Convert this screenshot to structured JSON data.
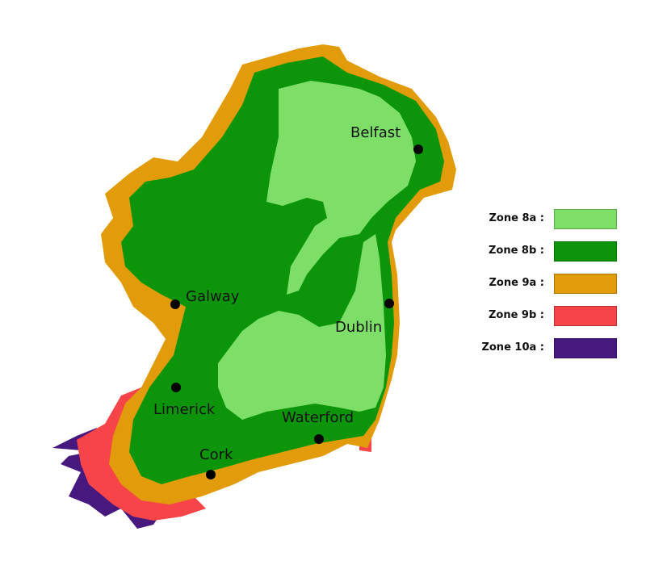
{
  "legend": [
    {
      "label": "Zone 8a :",
      "color": "#7ddf68"
    },
    {
      "label": "Zone 8b :",
      "color": "#0c950b"
    },
    {
      "label": "Zone 9a :",
      "color": "#e29c0b"
    },
    {
      "label": "Zone 9b :",
      "color": "#f64448"
    },
    {
      "label": "Zone 10a :",
      "color": "#47197f"
    }
  ],
  "cities": [
    {
      "name": "Belfast"
    },
    {
      "name": "Galway"
    },
    {
      "name": "Dublin"
    },
    {
      "name": "Limerick"
    },
    {
      "name": "Waterford"
    },
    {
      "name": "Cork"
    }
  ]
}
